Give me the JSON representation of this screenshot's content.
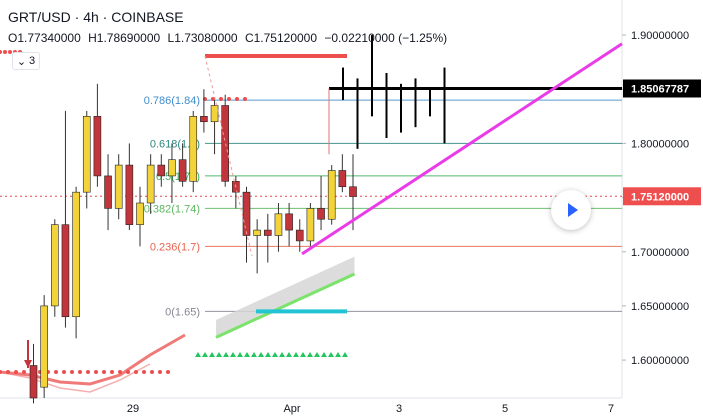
{
  "header": {
    "symbol": "GRT/USD",
    "sep1": "·",
    "interval": "4h",
    "sep2": "·",
    "exchange": "COINBASE"
  },
  "ohlc": {
    "open_label": "O",
    "open": "1.77340000",
    "high_label": "H",
    "high": "1.78690000",
    "low_label": "L",
    "low": "1.73080000",
    "close_label": "C",
    "close": "1.75120000",
    "change": "−0.02210000 (−1.25%)"
  },
  "indicator_toggle": {
    "label": "3"
  },
  "colors": {
    "up": "#f2d33a",
    "down": "#c0363c",
    "cursor_line": "#e8474f",
    "trend": "#e93be8",
    "resistance": "#000000",
    "support": "#22c3d3",
    "ma": "#7be36a",
    "ma_lower": "#ef7a78",
    "price_badge": "#ef4e4e"
  },
  "chart_data": {
    "type": "candlestick",
    "yaxis": {
      "range": [
        1.565,
        1.925
      ],
      "ticks": [
        "1.90000000",
        "1.85000000",
        "1.80000000",
        "1.75000000",
        "1.70000000",
        "1.65000000",
        "1.60000000"
      ],
      "tick_values": [
        1.9,
        1.85,
        1.8,
        1.75,
        1.7,
        1.65,
        1.6
      ]
    },
    "xaxis": {
      "ticks": [
        "29",
        "Apr",
        "3",
        "5",
        "7"
      ]
    },
    "fib_levels": [
      {
        "label": "0.786(1.84)",
        "price": 1.84
      },
      {
        "label": "0.618(1.8)",
        "price": 1.8
      },
      {
        "label": "0.5(1.77)",
        "price": 1.77
      },
      {
        "label": "0.382(1.74)",
        "price": 1.74
      },
      {
        "label": "0.236(1.7)",
        "price": 1.705
      },
      {
        "label": "0(1.65)",
        "price": 1.645
      }
    ],
    "price_badges": [
      {
        "label": "1.85067787",
        "price": 1.8507
      },
      {
        "label": "1.75120000",
        "price": 1.7512
      }
    ],
    "candles": [
      {
        "o": 1.595,
        "h": 1.615,
        "l": 1.56,
        "c": 1.565
      },
      {
        "o": 1.575,
        "h": 1.66,
        "l": 1.565,
        "c": 1.65
      },
      {
        "o": 1.65,
        "h": 1.73,
        "l": 1.64,
        "c": 1.725
      },
      {
        "o": 1.725,
        "h": 1.83,
        "l": 1.63,
        "c": 1.64
      },
      {
        "o": 1.64,
        "h": 1.76,
        "l": 1.62,
        "c": 1.755
      },
      {
        "o": 1.755,
        "h": 1.83,
        "l": 1.74,
        "c": 1.825
      },
      {
        "o": 1.825,
        "h": 1.855,
        "l": 1.76,
        "c": 1.77
      },
      {
        "o": 1.77,
        "h": 1.79,
        "l": 1.72,
        "c": 1.74
      },
      {
        "o": 1.74,
        "h": 1.79,
        "l": 1.73,
        "c": 1.78
      },
      {
        "o": 1.78,
        "h": 1.8,
        "l": 1.72,
        "c": 1.725
      },
      {
        "o": 1.725,
        "h": 1.76,
        "l": 1.705,
        "c": 1.745
      },
      {
        "o": 1.745,
        "h": 1.79,
        "l": 1.735,
        "c": 1.78
      },
      {
        "o": 1.78,
        "h": 1.79,
        "l": 1.76,
        "c": 1.77
      },
      {
        "o": 1.77,
        "h": 1.8,
        "l": 1.745,
        "c": 1.785
      },
      {
        "o": 1.785,
        "h": 1.8,
        "l": 1.76,
        "c": 1.765
      },
      {
        "o": 1.765,
        "h": 1.83,
        "l": 1.755,
        "c": 1.825
      },
      {
        "o": 1.825,
        "h": 1.85,
        "l": 1.81,
        "c": 1.82
      },
      {
        "o": 1.82,
        "h": 1.84,
        "l": 1.79,
        "c": 1.835
      },
      {
        "o": 1.835,
        "h": 1.845,
        "l": 1.76,
        "c": 1.765
      },
      {
        "o": 1.765,
        "h": 1.77,
        "l": 1.74,
        "c": 1.755
      },
      {
        "o": 1.755,
        "h": 1.76,
        "l": 1.69,
        "c": 1.715
      },
      {
        "o": 1.715,
        "h": 1.73,
        "l": 1.68,
        "c": 1.72
      },
      {
        "o": 1.72,
        "h": 1.735,
        "l": 1.69,
        "c": 1.715
      },
      {
        "o": 1.715,
        "h": 1.745,
        "l": 1.7,
        "c": 1.735
      },
      {
        "o": 1.735,
        "h": 1.745,
        "l": 1.705,
        "c": 1.72
      },
      {
        "o": 1.72,
        "h": 1.73,
        "l": 1.7,
        "c": 1.71
      },
      {
        "o": 1.71,
        "h": 1.745,
        "l": 1.705,
        "c": 1.74
      },
      {
        "o": 1.74,
        "h": 1.77,
        "l": 1.72,
        "c": 1.73
      },
      {
        "o": 1.73,
        "h": 1.78,
        "l": 1.725,
        "c": 1.775
      },
      {
        "o": 1.775,
        "h": 1.79,
        "l": 1.755,
        "c": 1.76
      },
      {
        "o": 1.76,
        "h": 1.79,
        "l": 1.72,
        "c": 1.751
      }
    ],
    "projection_bars": [
      {
        "h": 1.87,
        "l": 1.84
      },
      {
        "h": 1.86,
        "l": 1.795
      },
      {
        "h": 1.9,
        "l": 1.825
      },
      {
        "h": 1.865,
        "l": 1.805
      },
      {
        "h": 1.855,
        "l": 1.81
      },
      {
        "h": 1.86,
        "l": 1.815
      },
      {
        "h": 1.85,
        "l": 1.825
      },
      {
        "h": 1.87,
        "l": 1.8
      }
    ]
  }
}
